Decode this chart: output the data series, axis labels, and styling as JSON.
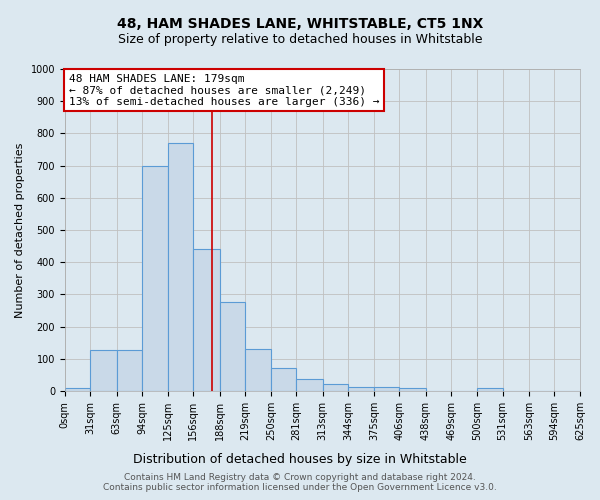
{
  "title": "48, HAM SHADES LANE, WHITSTABLE, CT5 1NX",
  "subtitle": "Size of property relative to detached houses in Whitstable",
  "xlabel": "Distribution of detached houses by size in Whitstable",
  "ylabel": "Number of detached properties",
  "bin_labels": [
    "0sqm",
    "31sqm",
    "63sqm",
    "94sqm",
    "125sqm",
    "156sqm",
    "188sqm",
    "219sqm",
    "250sqm",
    "281sqm",
    "313sqm",
    "344sqm",
    "375sqm",
    "406sqm",
    "438sqm",
    "469sqm",
    "500sqm",
    "531sqm",
    "563sqm",
    "594sqm",
    "625sqm"
  ],
  "bin_edges": [
    0,
    31,
    63,
    94,
    125,
    156,
    188,
    219,
    250,
    281,
    313,
    344,
    375,
    406,
    438,
    469,
    500,
    531,
    563,
    594,
    625
  ],
  "bar_heights": [
    8,
    128,
    128,
    700,
    770,
    440,
    275,
    130,
    70,
    38,
    22,
    12,
    12,
    8,
    0,
    0,
    8,
    0,
    0,
    0,
    0
  ],
  "bar_color": "#c9d9e8",
  "bar_edge_color": "#5b9bd5",
  "bar_edge_width": 0.8,
  "property_line_x": 179,
  "property_line_color": "#cc0000",
  "annotation_line1": "48 HAM SHADES LANE: 179sqm",
  "annotation_line2": "← 87% of detached houses are smaller (2,249)",
  "annotation_line3": "13% of semi-detached houses are larger (336) →",
  "annotation_box_color": "white",
  "annotation_box_edge_color": "#cc0000",
  "ylim": [
    0,
    1000
  ],
  "yticks": [
    0,
    100,
    200,
    300,
    400,
    500,
    600,
    700,
    800,
    900,
    1000
  ],
  "grid_color": "#c0c0c0",
  "bg_color": "#dce8f0",
  "footer_line1": "Contains HM Land Registry data © Crown copyright and database right 2024.",
  "footer_line2": "Contains public sector information licensed under the Open Government Licence v3.0.",
  "title_fontsize": 10,
  "subtitle_fontsize": 9,
  "xlabel_fontsize": 9,
  "ylabel_fontsize": 8,
  "tick_fontsize": 7,
  "annotation_fontsize": 8,
  "footer_fontsize": 6.5
}
